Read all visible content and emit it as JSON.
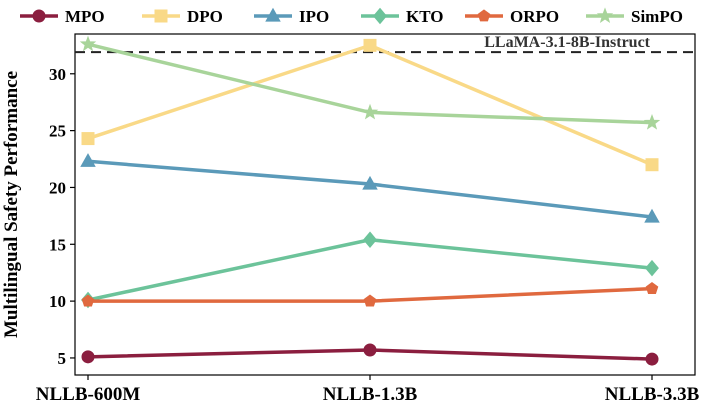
{
  "chart_data": {
    "type": "line",
    "categories": [
      "NLLB-600M",
      "NLLB-1.3B",
      "NLLB-3.3B"
    ],
    "ylabel": "Multilingual Safety Performance",
    "xlabel": "",
    "ylim": [
      3.5,
      33.5
    ],
    "yticks": [
      5,
      10,
      15,
      20,
      25,
      30
    ],
    "grid": false,
    "legend_position": "top",
    "reference_line": {
      "label": "LLaMA-3.1-8B-Instruct",
      "value": 31.9,
      "style": "dashed",
      "color": "#222222"
    },
    "series": [
      {
        "name": "MPO",
        "color": "#8b1e3f",
        "marker": "circle",
        "values": [
          5.1,
          5.7,
          4.9
        ]
      },
      {
        "name": "DPO",
        "color": "#f9d987",
        "marker": "square",
        "values": [
          24.3,
          32.5,
          22.0
        ]
      },
      {
        "name": "IPO",
        "color": "#5b9ab9",
        "marker": "triangle",
        "values": [
          22.3,
          20.3,
          17.4
        ]
      },
      {
        "name": "KTO",
        "color": "#6cc39a",
        "marker": "diamond",
        "values": [
          10.1,
          15.4,
          12.9
        ]
      },
      {
        "name": "ORPO",
        "color": "#e0693f",
        "marker": "pentagon",
        "values": [
          10.0,
          10.0,
          11.1
        ]
      },
      {
        "name": "SimPO",
        "color": "#a8d49a",
        "marker": "star",
        "values": [
          32.6,
          26.6,
          25.7
        ]
      }
    ]
  }
}
